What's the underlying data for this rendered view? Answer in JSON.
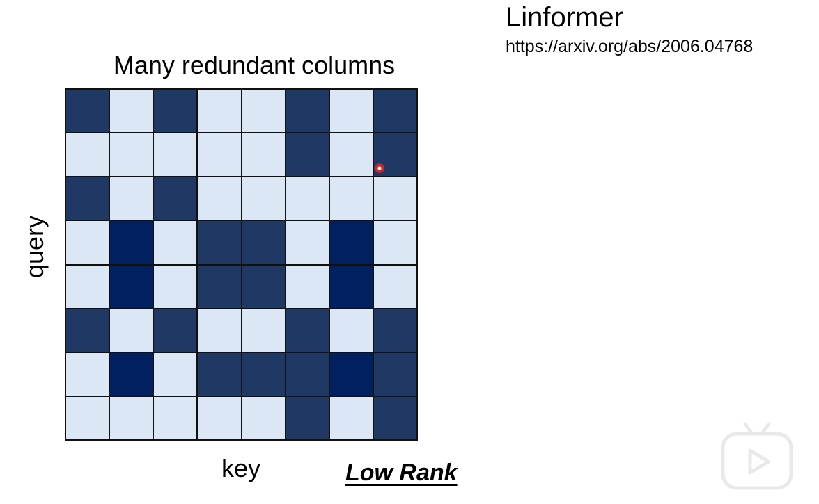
{
  "paper": {
    "title": "Linformer",
    "url": "https://arxiv.org/abs/2006.04768"
  },
  "diagram": {
    "title": "Many redundant columns",
    "y_label": "query",
    "x_label": "key",
    "caption": "Low Rank",
    "colors": {
      "light": "#dce7f5",
      "dark": "#1f3864",
      "darkest": "#002060",
      "grid_line": "#111111"
    },
    "matrix": [
      [
        1,
        0,
        1,
        0,
        0,
        1,
        0,
        1
      ],
      [
        0,
        0,
        0,
        0,
        0,
        1,
        0,
        1
      ],
      [
        1,
        0,
        1,
        0,
        0,
        0,
        0,
        0
      ],
      [
        0,
        2,
        0,
        1,
        1,
        0,
        2,
        0
      ],
      [
        0,
        2,
        0,
        1,
        1,
        0,
        2,
        0
      ],
      [
        1,
        0,
        1,
        0,
        0,
        1,
        0,
        1
      ],
      [
        0,
        2,
        0,
        1,
        1,
        1,
        2,
        1
      ],
      [
        0,
        0,
        0,
        0,
        0,
        1,
        0,
        1
      ]
    ]
  },
  "overlay": {
    "cursor_icon": "cursor-dot-icon",
    "logo_icon": "video-player-logo-icon"
  }
}
